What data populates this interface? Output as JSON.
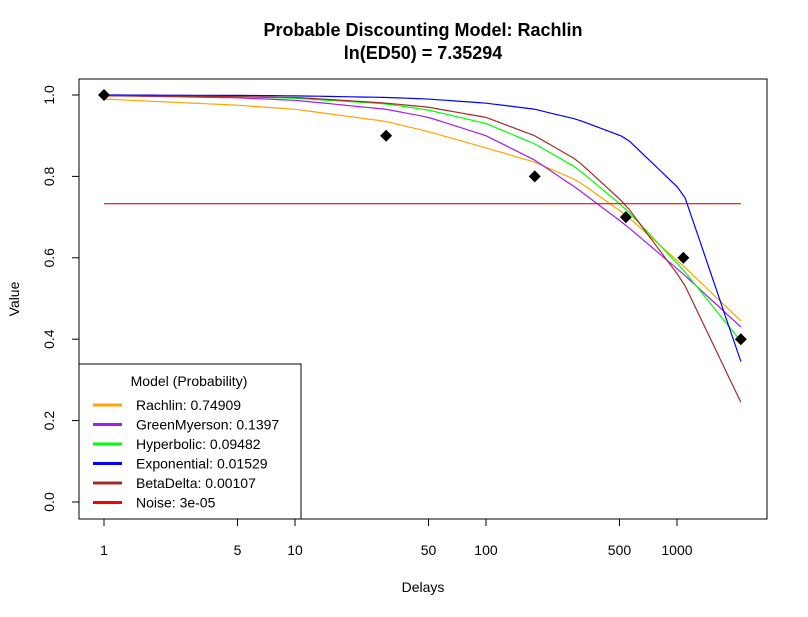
{
  "chart_data": {
    "type": "line",
    "title": "Probable Discounting Model: Rachlin",
    "subtitle": "ln(ED50) = 7.35294",
    "xlabel": "Delays",
    "ylabel": "Value",
    "x_scale": "log",
    "xlim": [
      1,
      2190
    ],
    "ylim": [
      0,
      1
    ],
    "x_ticks": [
      1,
      5,
      10,
      50,
      100,
      500,
      1000
    ],
    "x_tick_labels": [
      "1",
      "5",
      "10",
      "50",
      "100",
      "500",
      "1000"
    ],
    "y_ticks": [
      0.0,
      0.2,
      0.4,
      0.6,
      0.8,
      1.0
    ],
    "y_tick_labels": [
      "0.0",
      "0.2",
      "0.4",
      "0.6",
      "0.8",
      "1.0"
    ],
    "grid": false,
    "points": {
      "x": [
        1,
        30,
        180,
        540,
        1080,
        2160
      ],
      "y": [
        1.0,
        0.9,
        0.8,
        0.7,
        0.6,
        0.4
      ]
    },
    "legend": {
      "title": "Model (Probability)",
      "position": "bottom-left",
      "entries": [
        {
          "label": "Rachlin: 0.74909",
          "color": "#FFA500"
        },
        {
          "label": "GreenMyerson: 0.1397",
          "color": "#A020F0"
        },
        {
          "label": "Hyperbolic: 0.09482",
          "color": "#00FF00"
        },
        {
          "label": "Exponential: 0.01529",
          "color": "#0000FF"
        },
        {
          "label": "BetaDelta: 0.00107",
          "color": "#A52A2A"
        },
        {
          "label": "Noise: 3e-05",
          "color": "#FF0000"
        }
      ]
    },
    "series": [
      {
        "color": "#FFA500",
        "x": [
          1,
          5,
          10,
          30,
          50,
          100,
          180,
          300,
          540,
          1080,
          2160
        ],
        "y": [
          0.99,
          0.975,
          0.965,
          0.935,
          0.91,
          0.87,
          0.835,
          0.79,
          0.705,
          0.58,
          0.445
        ]
      },
      {
        "color": "#A020F0",
        "x": [
          1,
          5,
          10,
          30,
          50,
          100,
          180,
          300,
          540,
          1080,
          2160
        ],
        "y": [
          0.999,
          0.993,
          0.987,
          0.965,
          0.945,
          0.9,
          0.84,
          0.77,
          0.68,
          0.56,
          0.43
        ]
      },
      {
        "color": "#00FF00",
        "x": [
          1,
          5,
          10,
          30,
          50,
          100,
          180,
          300,
          540,
          1080,
          2160
        ],
        "y": [
          0.999,
          0.996,
          0.992,
          0.978,
          0.963,
          0.93,
          0.88,
          0.82,
          0.72,
          0.57,
          0.395
        ]
      },
      {
        "color": "#0000FF",
        "x": [
          1,
          5,
          10,
          30,
          50,
          100,
          180,
          300,
          540,
          1080,
          2160
        ],
        "y": [
          1.0,
          0.999,
          0.998,
          0.994,
          0.99,
          0.98,
          0.965,
          0.94,
          0.895,
          0.76,
          0.345
        ]
      },
      {
        "color": "#A52A2A",
        "x": [
          1,
          5,
          10,
          30,
          50,
          100,
          180,
          300,
          540,
          1080,
          2160
        ],
        "y": [
          0.998,
          0.996,
          0.994,
          0.98,
          0.97,
          0.945,
          0.9,
          0.84,
          0.73,
          0.54,
          0.245
        ]
      },
      {
        "color": "#FF0000",
        "x": [
          1,
          2160
        ],
        "y": [
          0.733,
          0.733
        ]
      }
    ]
  }
}
